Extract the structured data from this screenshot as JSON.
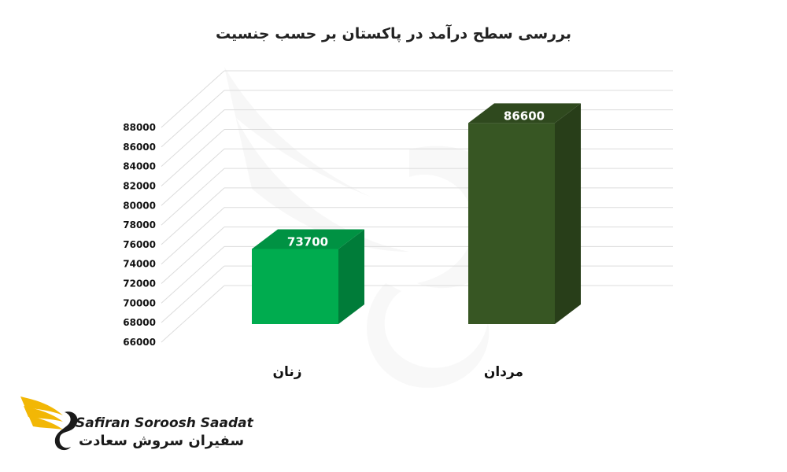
{
  "chart_data": {
    "type": "bar",
    "title": "بررسی سطح درآمد در پاکستان بر حسب جنسیت",
    "categories": [
      "زنان",
      "مردان"
    ],
    "values": [
      73700,
      86600
    ],
    "data_labels": [
      "73700",
      "86600"
    ],
    "yticks": [
      "66000",
      "68000",
      "70000",
      "72000",
      "74000",
      "76000",
      "78000",
      "80000",
      "82000",
      "84000",
      "86000",
      "88000"
    ],
    "ylim": [
      66000,
      88000
    ],
    "grid": true,
    "colors": [
      "#00ac4f",
      "#375623"
    ],
    "xlabel": "",
    "ylabel": ""
  },
  "brand": {
    "name_en": "Safiran Soroosh Saadat",
    "name_fa": "سفیران سروش سعادت",
    "logo_icon": "golden-wing-swan-icon",
    "logo_color": "#f2b705"
  }
}
